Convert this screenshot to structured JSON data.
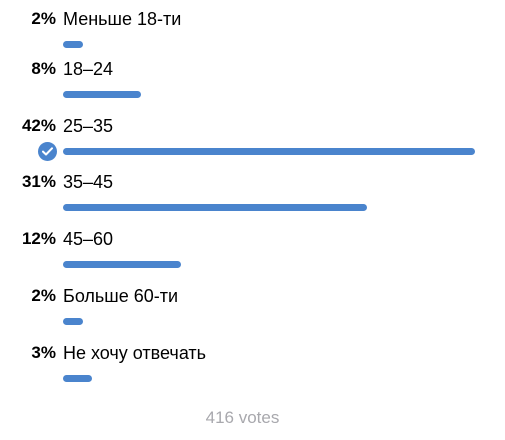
{
  "accent_color": "#4a84cd",
  "muted_text_color": "#a8a8ad",
  "poll": {
    "options": [
      {
        "percent": "2%",
        "label": "Меньше 18-ти",
        "share": 0.02,
        "selected": false
      },
      {
        "percent": "8%",
        "label": "18–24",
        "share": 0.08,
        "selected": false
      },
      {
        "percent": "42%",
        "label": "25–35",
        "share": 0.42,
        "selected": true,
        "check_icon": "checkmark-circle-icon"
      },
      {
        "percent": "31%",
        "label": "35–45",
        "share": 0.31,
        "selected": false
      },
      {
        "percent": "12%",
        "label": "45–60",
        "share": 0.12,
        "selected": false
      },
      {
        "percent": "2%",
        "label": "Больше 60-ти",
        "share": 0.02,
        "selected": false
      },
      {
        "percent": "3%",
        "label": "Не хочу отвечать",
        "share": 0.03,
        "selected": false
      }
    ],
    "votes_text": "416 votes"
  }
}
